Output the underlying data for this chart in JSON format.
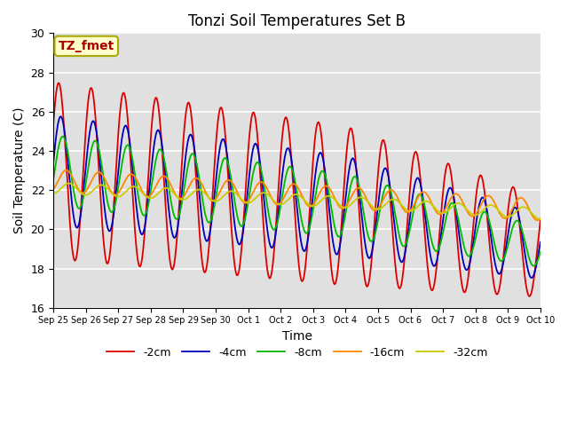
{
  "title": "Tonzi Soil Temperatures Set B",
  "xlabel": "Time",
  "ylabel": "Soil Temperature (C)",
  "ylim": [
    16,
    30
  ],
  "xlim": [
    0,
    15
  ],
  "plot_bg_color": "#e0e0e0",
  "grid_color": "#ffffff",
  "legend_labels": [
    "-2cm",
    "-4cm",
    "-8cm",
    "-16cm",
    "-32cm"
  ],
  "legend_colors": [
    "#dd0000",
    "#0000bb",
    "#00bb00",
    "#ff8800",
    "#cccc00"
  ],
  "annotation_text": "TZ_fmet",
  "annotation_color": "#aa0000",
  "annotation_bg": "#ffffcc",
  "annotation_border": "#aaaa00",
  "tick_labels": [
    "Sep 25",
    "Sep 26",
    "Sep 27",
    "Sep 28",
    "Sep 29",
    "Sep 30",
    "Oct 1",
    "Oct 2",
    "Oct 3",
    "Oct 4",
    "Oct 5",
    "Oct 6",
    "Oct 7",
    "Oct 8",
    "Oct 9",
    "Oct 10"
  ],
  "yticks": [
    16,
    18,
    20,
    22,
    24,
    26,
    28,
    30
  ],
  "title_fontsize": 12
}
